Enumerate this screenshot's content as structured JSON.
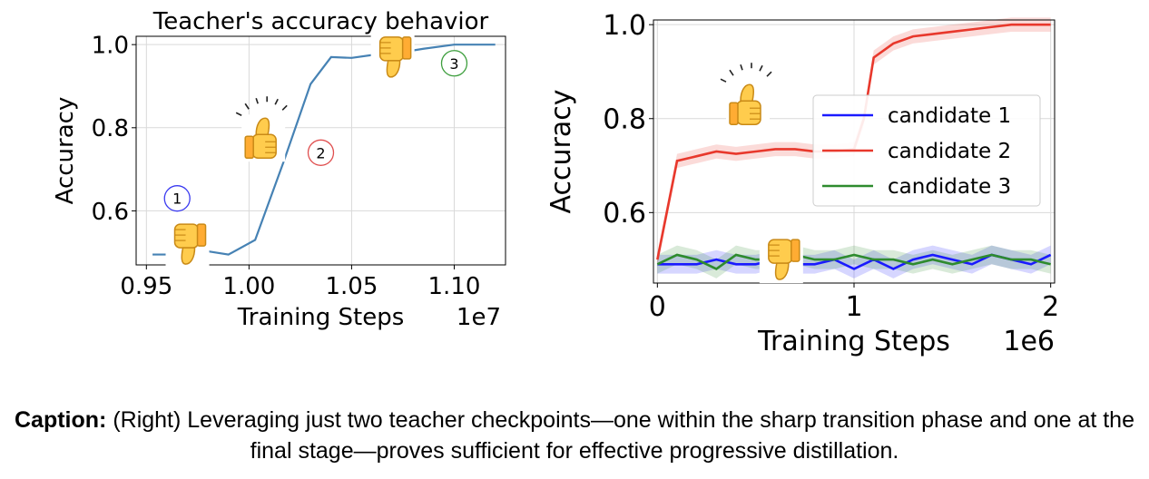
{
  "chart_data": [
    {
      "type": "line",
      "title": "Teacher's accuracy behavior",
      "xlabel": "Training Steps",
      "ylabel": "Accuracy",
      "x_offset_text": "1e7",
      "xlim": [
        0.945,
        1.125
      ],
      "ylim": [
        0.47,
        1.02
      ],
      "xticks": [
        "0.95",
        "1.00",
        "1.05",
        "1.10"
      ],
      "yticks": [
        "0.6",
        "0.8",
        "1.0"
      ],
      "grid": true,
      "series": [
        {
          "color": "#4682b4",
          "x": [
            0.953,
            0.965,
            0.977,
            0.99,
            1.003,
            1.017,
            1.03,
            1.04,
            1.05,
            1.06,
            1.07,
            1.085,
            1.1,
            1.12
          ],
          "y": [
            0.495,
            0.495,
            0.505,
            0.495,
            0.53,
            0.72,
            0.905,
            0.97,
            0.968,
            0.975,
            0.978,
            0.99,
            1.0,
            1.0
          ]
        }
      ],
      "annotations": [
        {
          "label": "1",
          "x": 0.965,
          "y": 0.63,
          "color": "#3a3af0"
        },
        {
          "label": "2",
          "x": 1.035,
          "y": 0.74,
          "color": "#e05050"
        },
        {
          "label": "3",
          "x": 1.1,
          "y": 0.955,
          "color": "#3f9f3f"
        }
      ],
      "icons": [
        {
          "name": "thumbs-down-icon",
          "x": 0.97,
          "y": 0.52
        },
        {
          "name": "thumbs-up-icon",
          "x": 1.007,
          "y": 0.775
        },
        {
          "name": "thumbs-down-icon",
          "x": 1.07,
          "y": 0.97
        }
      ]
    },
    {
      "type": "line",
      "title": "",
      "xlabel": "Training Steps",
      "ylabel": "Accuracy",
      "x_offset_text": "1e6",
      "xlim": [
        -0.02,
        2.02
      ],
      "ylim": [
        0.45,
        1.01
      ],
      "xticks": [
        "0",
        "1",
        "2"
      ],
      "yticks": [
        "0.6",
        "0.8",
        "1.0"
      ],
      "grid": true,
      "legend": "right",
      "series": [
        {
          "name": "candidate 1",
          "color": "#1a1aff",
          "x": [
            0,
            0.1,
            0.2,
            0.3,
            0.4,
            0.5,
            0.6,
            0.7,
            0.8,
            0.9,
            1.0,
            1.1,
            1.2,
            1.3,
            1.4,
            1.5,
            1.6,
            1.7,
            1.8,
            1.9,
            2.0
          ],
          "y": [
            0.49,
            0.49,
            0.49,
            0.5,
            0.49,
            0.49,
            0.5,
            0.49,
            0.49,
            0.5,
            0.48,
            0.5,
            0.48,
            0.5,
            0.51,
            0.5,
            0.49,
            0.51,
            0.5,
            0.49,
            0.51
          ],
          "band": 0.02
        },
        {
          "name": "candidate 2",
          "color": "#e8382c",
          "x": [
            0,
            0.1,
            0.2,
            0.3,
            0.4,
            0.5,
            0.6,
            0.7,
            0.8,
            0.9,
            1.0,
            1.05,
            1.1,
            1.2,
            1.3,
            1.4,
            1.5,
            1.6,
            1.7,
            1.8,
            1.9,
            2.0
          ],
          "y": [
            0.5,
            0.71,
            0.72,
            0.73,
            0.725,
            0.73,
            0.735,
            0.735,
            0.73,
            0.73,
            0.735,
            0.8,
            0.93,
            0.96,
            0.975,
            0.98,
            0.985,
            0.99,
            0.995,
            1.0,
            1.0,
            1.0
          ],
          "band": 0.015
        },
        {
          "name": "candidate 3",
          "color": "#2e8b2e",
          "x": [
            0,
            0.1,
            0.2,
            0.3,
            0.4,
            0.5,
            0.6,
            0.7,
            0.8,
            0.9,
            1.0,
            1.1,
            1.2,
            1.3,
            1.4,
            1.5,
            1.6,
            1.7,
            1.8,
            1.9,
            2.0
          ],
          "y": [
            0.49,
            0.51,
            0.5,
            0.48,
            0.51,
            0.5,
            0.5,
            0.51,
            0.5,
            0.5,
            0.51,
            0.5,
            0.5,
            0.49,
            0.5,
            0.49,
            0.5,
            0.51,
            0.5,
            0.5,
            0.49
          ],
          "band": 0.02
        }
      ],
      "icons": [
        {
          "name": "thumbs-up-icon",
          "x": 0.46,
          "y": 0.83
        },
        {
          "name": "thumbs-down-icon",
          "x": 0.63,
          "y": 0.5
        }
      ]
    }
  ],
  "caption": {
    "bold": "Caption:",
    "text": " (Right) Leveraging just two teacher checkpoints—one within the sharp transition phase and one at the final stage—proves sufficient for effective progressive distillation."
  }
}
